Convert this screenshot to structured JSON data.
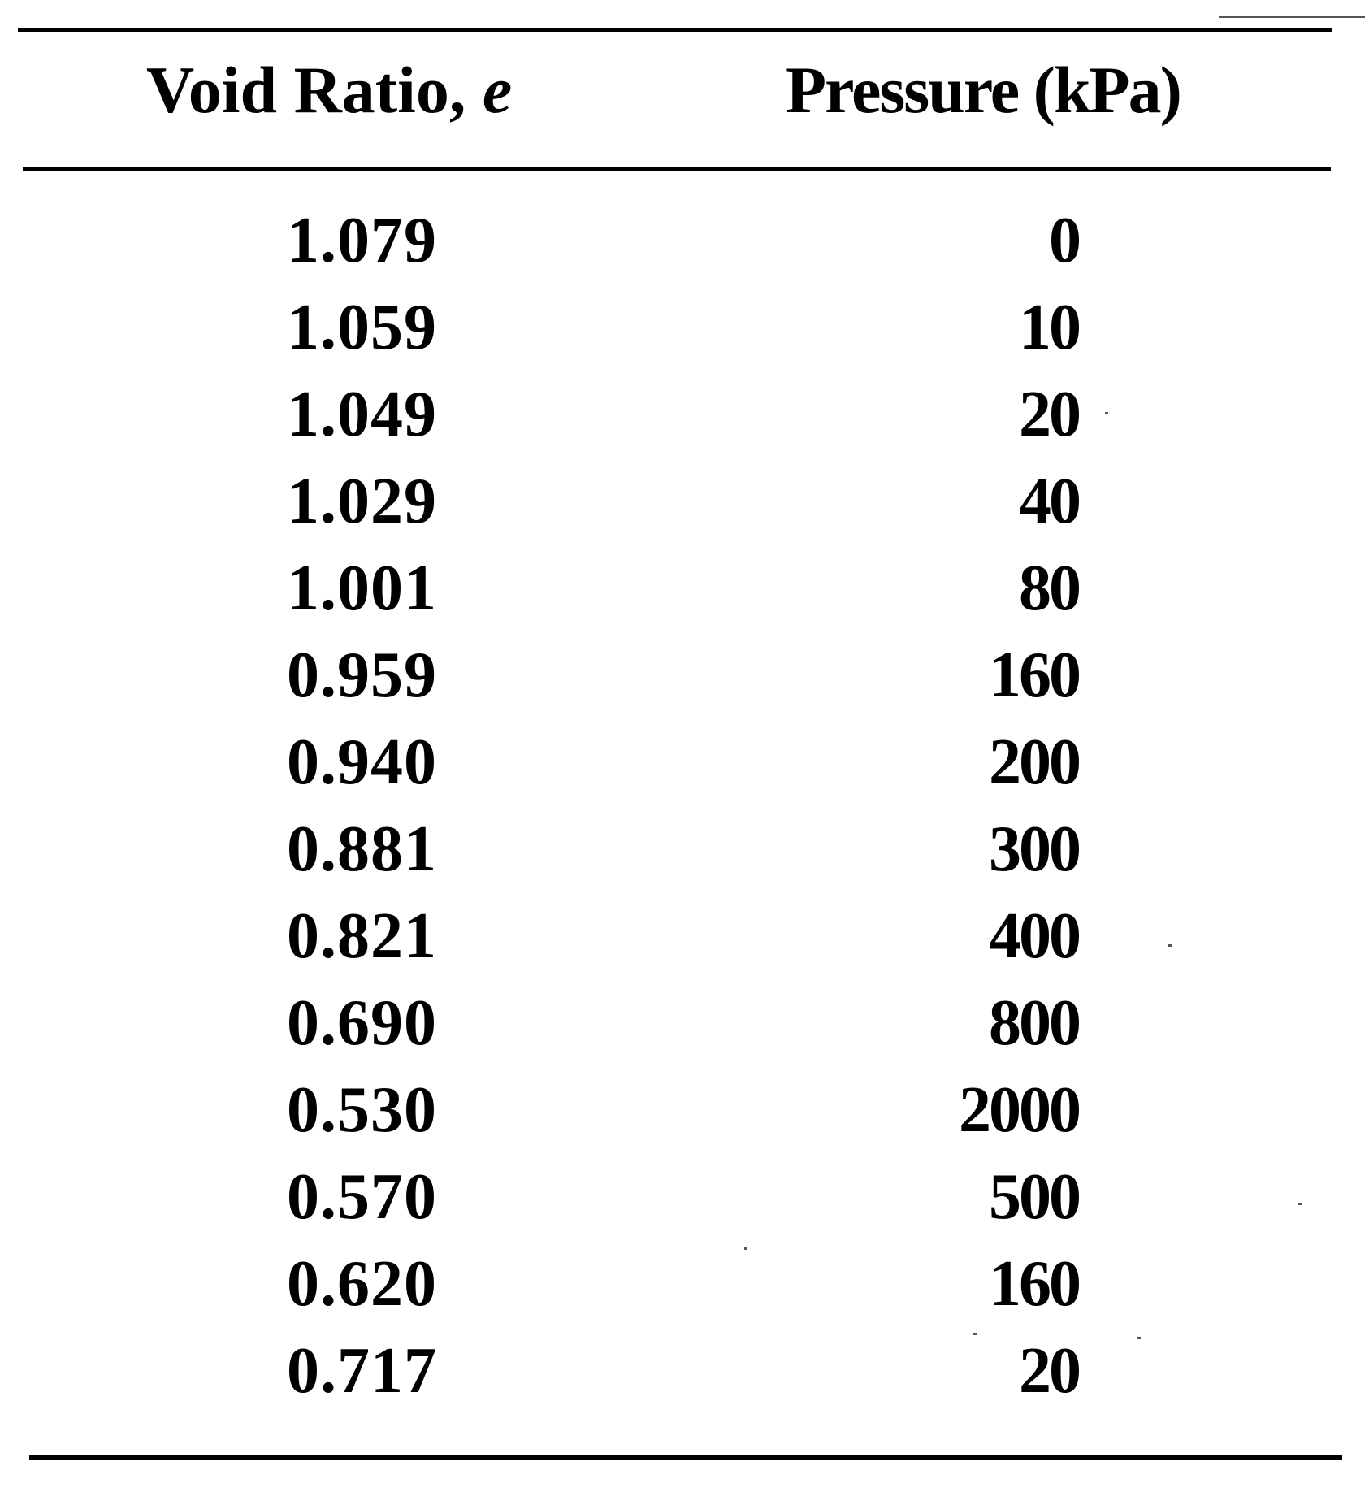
{
  "table": {
    "headers": {
      "void_ratio": "Void Ratio, ",
      "void_ratio_var": "e",
      "pressure": "Pressure (kPa)"
    },
    "rows": [
      {
        "void_ratio": "1.079",
        "pressure": "0"
      },
      {
        "void_ratio": "1.059",
        "pressure": "10"
      },
      {
        "void_ratio": "1.049",
        "pressure": "20"
      },
      {
        "void_ratio": "1.029",
        "pressure": "40"
      },
      {
        "void_ratio": "1.001",
        "pressure": "80"
      },
      {
        "void_ratio": "0.959",
        "pressure": "160"
      },
      {
        "void_ratio": "0.940",
        "pressure": "200"
      },
      {
        "void_ratio": "0.881",
        "pressure": "300"
      },
      {
        "void_ratio": "0.821",
        "pressure": "400"
      },
      {
        "void_ratio": "0.690",
        "pressure": "800"
      },
      {
        "void_ratio": "0.530",
        "pressure": "2000"
      },
      {
        "void_ratio": "0.570",
        "pressure": "500"
      },
      {
        "void_ratio": "0.620",
        "pressure": "160"
      },
      {
        "void_ratio": "0.717",
        "pressure": "20"
      }
    ]
  }
}
